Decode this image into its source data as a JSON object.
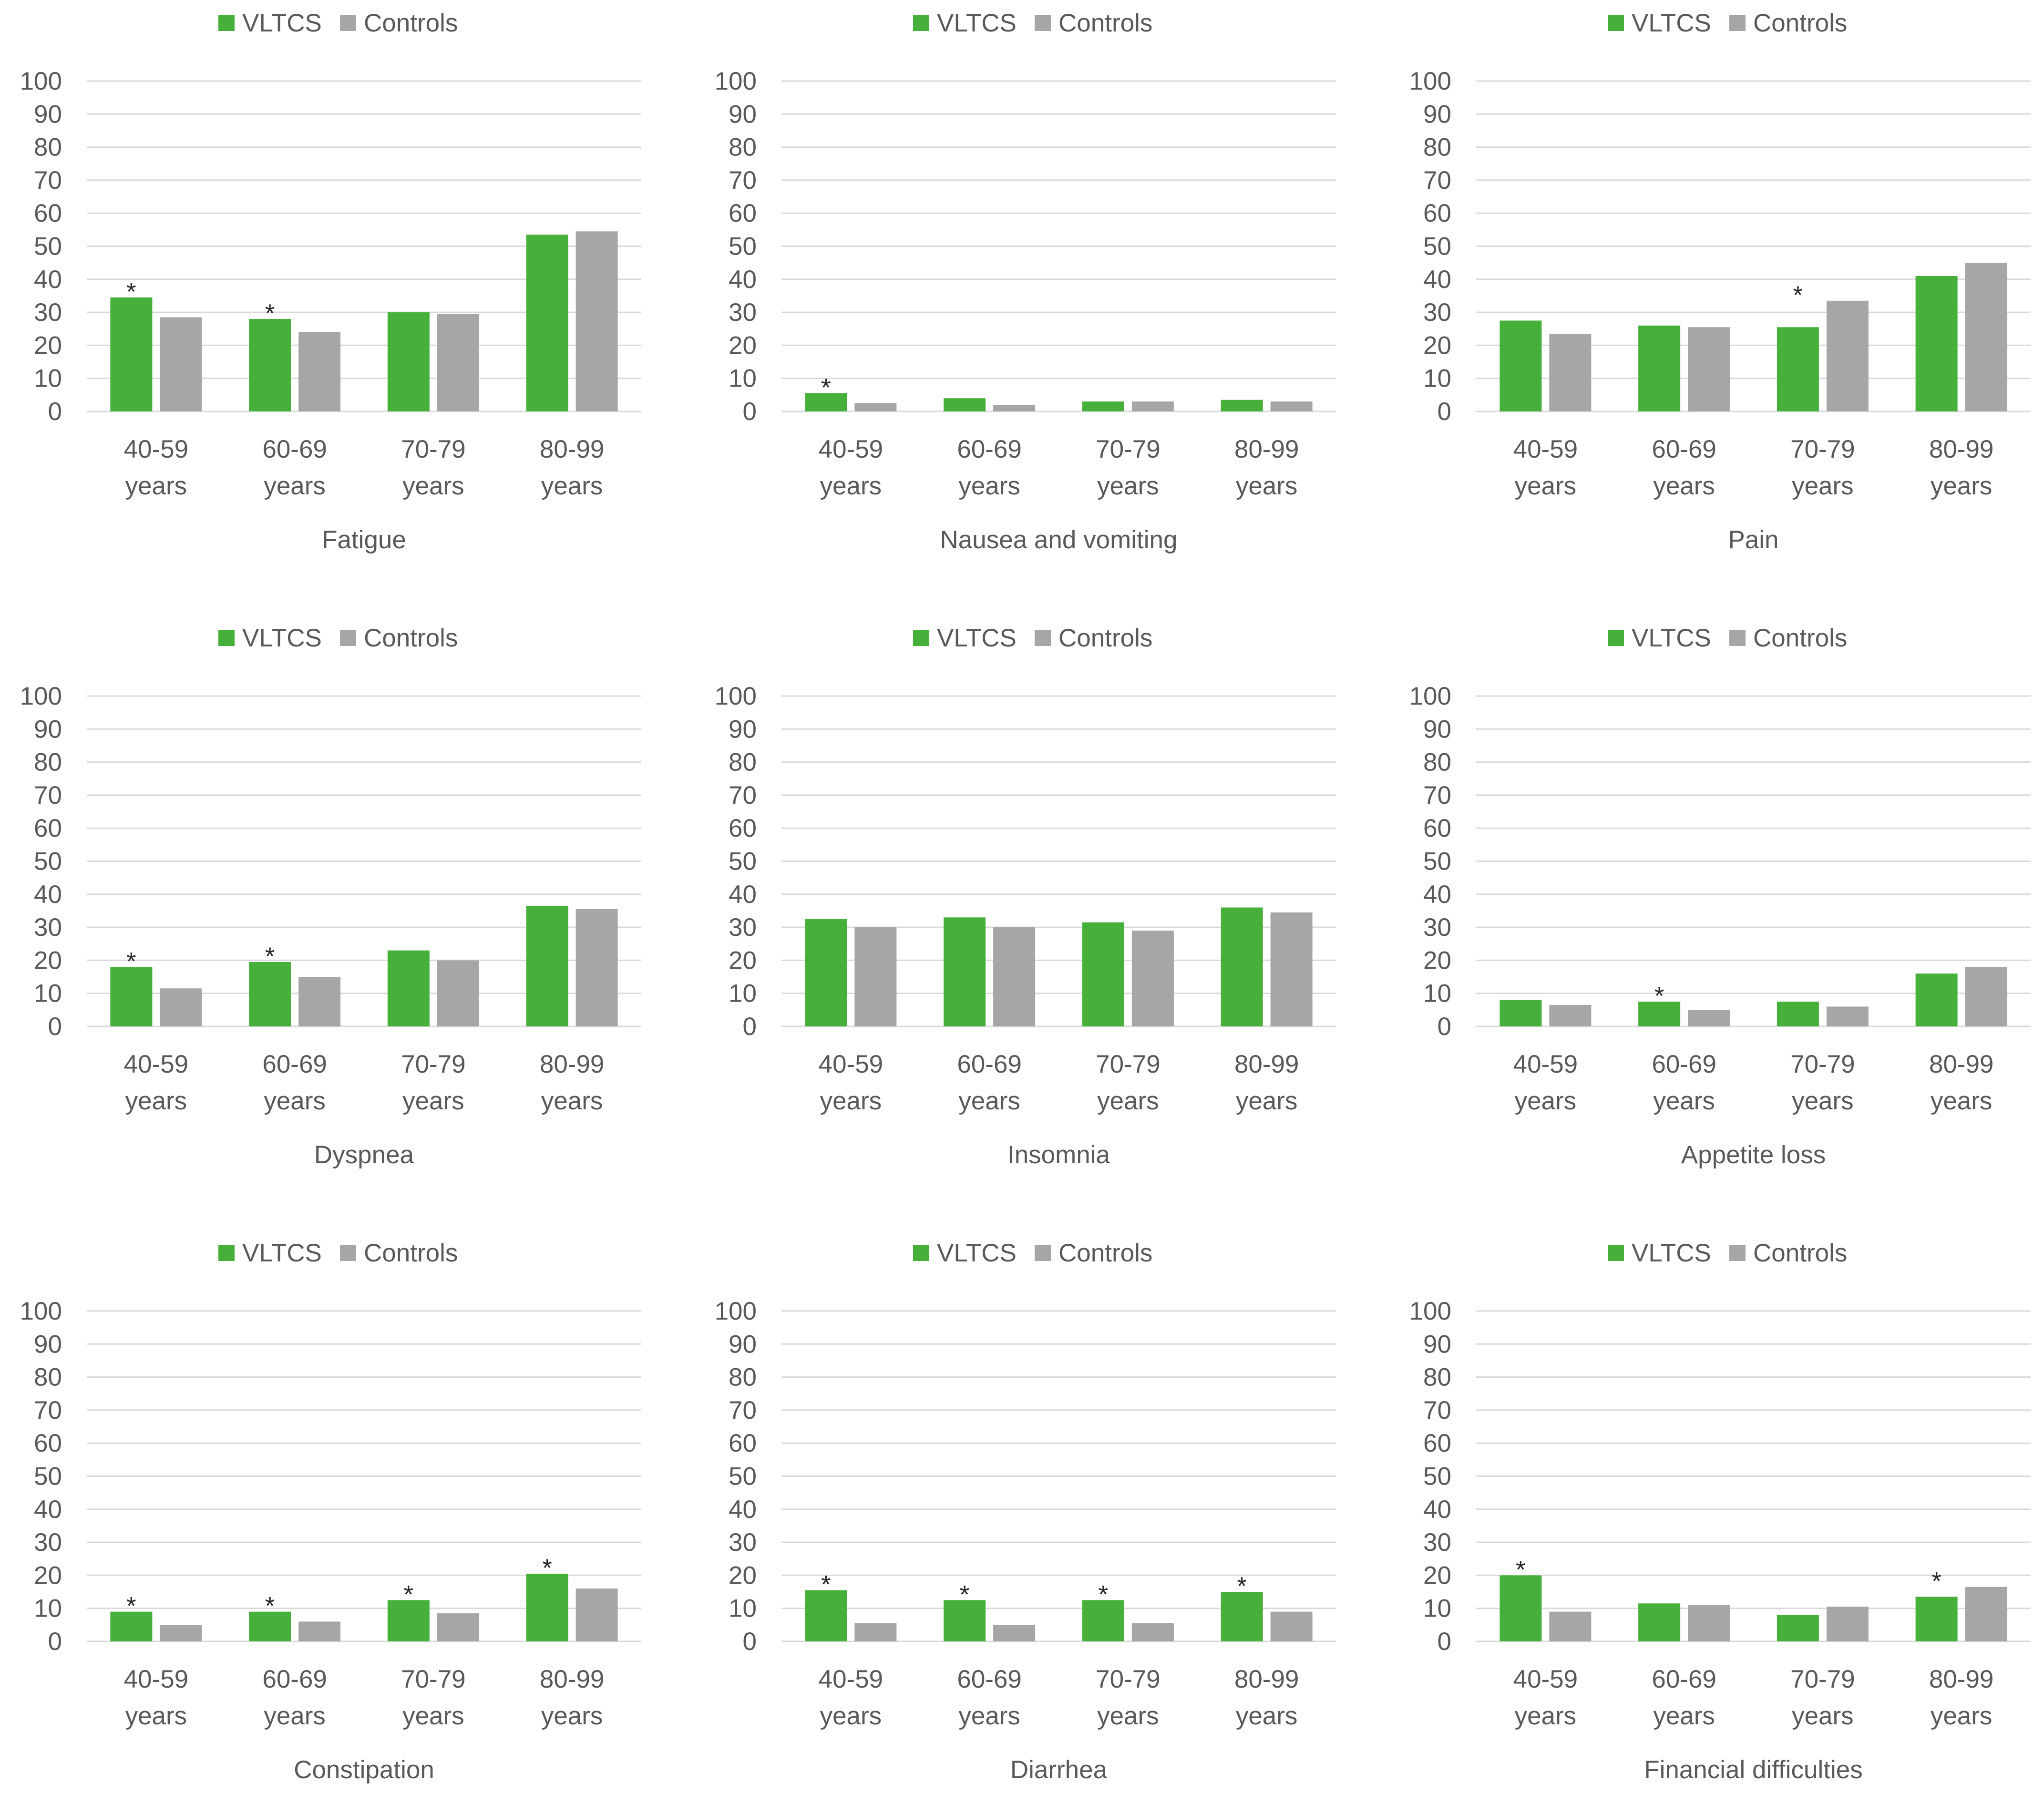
{
  "colors": {
    "vltcs": "#46b03b",
    "controls": "#a6a6a6",
    "gridline": "#d9d9d9",
    "text": "#595959",
    "star": "#262626"
  },
  "legend": {
    "series_a": "VLTCS",
    "series_b": "Controls"
  },
  "age_groups": [
    {
      "range": "40-59",
      "unit": "years"
    },
    {
      "range": "60-69",
      "unit": "years"
    },
    {
      "range": "70-79",
      "unit": "years"
    },
    {
      "range": "80-99",
      "unit": "years"
    }
  ],
  "significance_marker": "*",
  "chart_data": [
    {
      "type": "bar",
      "title": "Fatigue",
      "categories": [
        "40-59 years",
        "60-69 years",
        "70-79 years",
        "80-99 years"
      ],
      "series": [
        {
          "name": "VLTCS",
          "values": [
            34.5,
            28,
            30,
            53.5
          ]
        },
        {
          "name": "Controls",
          "values": [
            28.5,
            24,
            29.5,
            54.5
          ]
        }
      ],
      "significant": [
        true,
        true,
        false,
        false
      ],
      "ylim": [
        0,
        100
      ],
      "yticks": [
        0,
        10,
        20,
        30,
        40,
        50,
        60,
        70,
        80,
        90,
        100
      ],
      "xlabel": "Fatigue",
      "ylabel": ""
    },
    {
      "type": "bar",
      "title": "Nausea and vomiting",
      "categories": [
        "40-59 years",
        "60-69 years",
        "70-79 years",
        "80-99 years"
      ],
      "series": [
        {
          "name": "VLTCS",
          "values": [
            5.5,
            4,
            3,
            3.5
          ]
        },
        {
          "name": "Controls",
          "values": [
            2.5,
            2,
            3,
            3
          ]
        }
      ],
      "significant": [
        true,
        false,
        false,
        false
      ],
      "ylim": [
        0,
        100
      ],
      "yticks": [
        0,
        10,
        20,
        30,
        40,
        50,
        60,
        70,
        80,
        90,
        100
      ],
      "xlabel": "Nausea and vomiting",
      "ylabel": ""
    },
    {
      "type": "bar",
      "title": "Pain",
      "categories": [
        "40-59 years",
        "60-69 years",
        "70-79 years",
        "80-99 years"
      ],
      "series": [
        {
          "name": "VLTCS",
          "values": [
            27.5,
            26,
            25.5,
            41
          ]
        },
        {
          "name": "Controls",
          "values": [
            23.5,
            25.5,
            33.5,
            45
          ]
        }
      ],
      "significant": [
        false,
        false,
        true,
        false
      ],
      "ylim": [
        0,
        100
      ],
      "yticks": [
        0,
        10,
        20,
        30,
        40,
        50,
        60,
        70,
        80,
        90,
        100
      ],
      "xlabel": "Pain",
      "ylabel": ""
    },
    {
      "type": "bar",
      "title": "Dyspnea",
      "categories": [
        "40-59 years",
        "60-69 years",
        "70-79 years",
        "80-99 years"
      ],
      "series": [
        {
          "name": "VLTCS",
          "values": [
            18,
            19.5,
            23,
            36.5
          ]
        },
        {
          "name": "Controls",
          "values": [
            11.5,
            15,
            20,
            35.5
          ]
        }
      ],
      "significant": [
        true,
        true,
        false,
        false
      ],
      "ylim": [
        0,
        100
      ],
      "yticks": [
        0,
        10,
        20,
        30,
        40,
        50,
        60,
        70,
        80,
        90,
        100
      ],
      "xlabel": "Dyspnea",
      "ylabel": ""
    },
    {
      "type": "bar",
      "title": "Insomnia",
      "categories": [
        "40-59 years",
        "60-69 years",
        "70-79 years",
        "80-99 years"
      ],
      "series": [
        {
          "name": "VLTCS",
          "values": [
            32.5,
            33,
            31.5,
            36
          ]
        },
        {
          "name": "Controls",
          "values": [
            30,
            30,
            29,
            34.5
          ]
        }
      ],
      "significant": [
        false,
        false,
        false,
        false
      ],
      "ylim": [
        0,
        100
      ],
      "yticks": [
        0,
        10,
        20,
        30,
        40,
        50,
        60,
        70,
        80,
        90,
        100
      ],
      "xlabel": "Insomnia",
      "ylabel": ""
    },
    {
      "type": "bar",
      "title": "Appetite loss",
      "categories": [
        "40-59 years",
        "60-69 years",
        "70-79 years",
        "80-99 years"
      ],
      "series": [
        {
          "name": "VLTCS",
          "values": [
            8,
            7.5,
            7.5,
            16
          ]
        },
        {
          "name": "Controls",
          "values": [
            6.5,
            5,
            6,
            18
          ]
        }
      ],
      "significant": [
        false,
        true,
        false,
        false
      ],
      "ylim": [
        0,
        100
      ],
      "yticks": [
        0,
        10,
        20,
        30,
        40,
        50,
        60,
        70,
        80,
        90,
        100
      ],
      "xlabel": "Appetite loss",
      "ylabel": ""
    },
    {
      "type": "bar",
      "title": "Constipation",
      "categories": [
        "40-59 years",
        "60-69 years",
        "70-79 years",
        "80-99 years"
      ],
      "series": [
        {
          "name": "VLTCS",
          "values": [
            9,
            9,
            12.5,
            20.5
          ]
        },
        {
          "name": "Controls",
          "values": [
            5,
            6,
            8.5,
            16
          ]
        }
      ],
      "significant": [
        true,
        true,
        true,
        true
      ],
      "ylim": [
        0,
        100
      ],
      "yticks": [
        0,
        10,
        20,
        30,
        40,
        50,
        60,
        70,
        80,
        90,
        100
      ],
      "xlabel": "Constipation",
      "ylabel": ""
    },
    {
      "type": "bar",
      "title": "Diarrhea",
      "categories": [
        "40-59 years",
        "60-69 years",
        "70-79 years",
        "80-99 years"
      ],
      "series": [
        {
          "name": "VLTCS",
          "values": [
            15.5,
            12.5,
            12.5,
            15
          ]
        },
        {
          "name": "Controls",
          "values": [
            5.5,
            5,
            5.5,
            9
          ]
        }
      ],
      "significant": [
        true,
        true,
        true,
        true
      ],
      "ylim": [
        0,
        100
      ],
      "yticks": [
        0,
        10,
        20,
        30,
        40,
        50,
        60,
        70,
        80,
        90,
        100
      ],
      "xlabel": "Diarrhea",
      "ylabel": ""
    },
    {
      "type": "bar",
      "title": "Financial difficulties",
      "categories": [
        "40-59 years",
        "60-69 years",
        "70-79 years",
        "80-99 years"
      ],
      "series": [
        {
          "name": "VLTCS",
          "values": [
            20,
            11.5,
            8,
            13.5
          ]
        },
        {
          "name": "Controls",
          "values": [
            9,
            11,
            10.5,
            16.5
          ]
        }
      ],
      "significant": [
        true,
        false,
        false,
        true
      ],
      "ylim": [
        0,
        100
      ],
      "yticks": [
        0,
        10,
        20,
        30,
        40,
        50,
        60,
        70,
        80,
        90,
        100
      ],
      "xlabel": "Financial difficulties",
      "ylabel": ""
    }
  ]
}
